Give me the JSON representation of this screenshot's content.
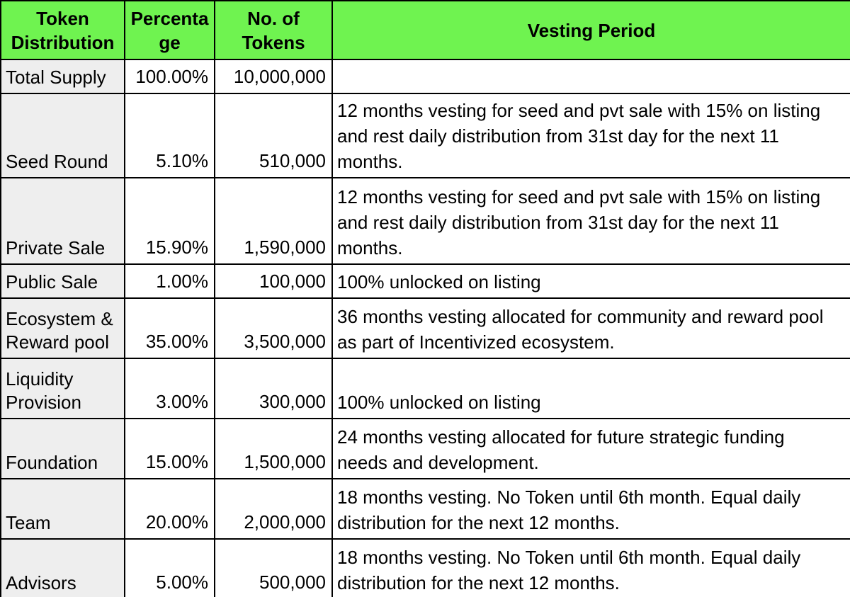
{
  "table": {
    "columns": [
      {
        "label": "Token Distribution"
      },
      {
        "label": "Percentage"
      },
      {
        "label": "No. of Tokens"
      },
      {
        "label": "Vesting Period"
      }
    ],
    "rows": [
      {
        "name": "Total Supply",
        "percentage": "100.00%",
        "tokens": "10,000,000",
        "vesting": ""
      },
      {
        "name": "Seed Round",
        "percentage": "5.10%",
        "tokens": "510,000",
        "vesting": "12 months vesting for seed and pvt sale with 15% on listing and rest daily distribution from 31st day for the next 11 months."
      },
      {
        "name": "Private Sale",
        "percentage": "15.90%",
        "tokens": "1,590,000",
        "vesting": "12 months vesting for seed and pvt sale with 15% on listing and rest daily distribution from 31st day for the next 11 months."
      },
      {
        "name": "Public Sale",
        "percentage": "1.00%",
        "tokens": "100,000",
        "vesting": "100% unlocked on listing"
      },
      {
        "name": "Ecosystem & Reward pool",
        "percentage": "35.00%",
        "tokens": "3,500,000",
        "vesting": "36 months vesting allocated for community and reward pool as part of Incentivized ecosystem."
      },
      {
        "name": "Liquidity Provision",
        "percentage": "3.00%",
        "tokens": "300,000",
        "vesting": "100% unlocked on listing"
      },
      {
        "name": "Foundation",
        "percentage": "15.00%",
        "tokens": "1,500,000",
        "vesting": "24 months vesting allocated for future strategic funding needs and development."
      },
      {
        "name": "Team",
        "percentage": "20.00%",
        "tokens": "2,000,000",
        "vesting": "18 months vesting. No Token until 6th month. Equal daily distribution for the next 12 months."
      },
      {
        "name": "Advisors",
        "percentage": "5.00%",
        "tokens": "500,000",
        "vesting": "18 months vesting. No Token until 6th month. Equal daily distribution for the next 12 months."
      }
    ],
    "colors": {
      "header_bg": "#6FF350",
      "label_col_bg": "#EEEEEE",
      "border": "#000000",
      "text": "#000000",
      "cell_bg": "#FFFFFF"
    }
  }
}
